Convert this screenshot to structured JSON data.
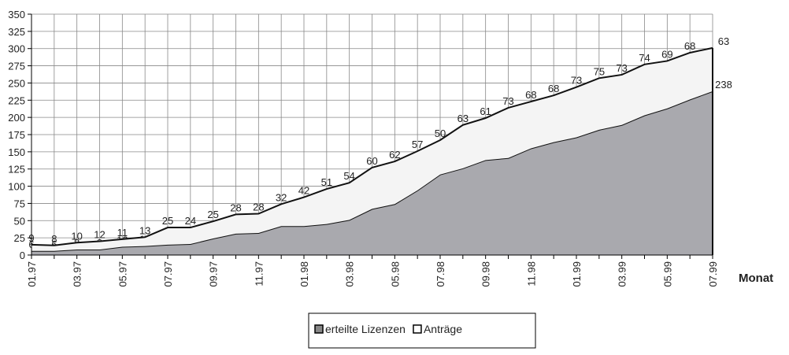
{
  "chart_data": {
    "type": "stacked-area",
    "x_label": "Monat",
    "categories": [
      "01.97",
      null,
      "03.97",
      null,
      "05.97",
      null,
      "07.97",
      null,
      "09.97",
      null,
      "11.97",
      null,
      "01.98",
      null,
      "03.98",
      null,
      "05.98",
      null,
      "07.98",
      null,
      "09.98",
      null,
      "11.98",
      null,
      "01.99",
      null,
      "03.99",
      null,
      "05.99",
      null,
      "07.99"
    ],
    "series": [
      {
        "name": "erteilte Lizenzen",
        "color": "#a9a9ae",
        "values": [
          6,
          6,
          8,
          8,
          12,
          13,
          15,
          16,
          24,
          31,
          32,
          42,
          42,
          45,
          51,
          67,
          74,
          94,
          117,
          126,
          138,
          141,
          155,
          164,
          171,
          182,
          189,
          203,
          213,
          226,
          238
        ]
      },
      {
        "name": "Anträge",
        "color": "#f4f4f4",
        "values": [
          9,
          8,
          10,
          12,
          11,
          13,
          25,
          24,
          25,
          28,
          28,
          32,
          42,
          51,
          54,
          60,
          62,
          57,
          50,
          63,
          61,
          73,
          68,
          68,
          73,
          75,
          73,
          74,
          69,
          68,
          63
        ]
      }
    ],
    "ylim": [
      0,
      350
    ],
    "yticks": [
      0,
      25,
      50,
      75,
      100,
      125,
      150,
      175,
      200,
      225,
      250,
      275,
      300,
      325,
      350
    ],
    "grid": true,
    "legend": "bottom"
  }
}
